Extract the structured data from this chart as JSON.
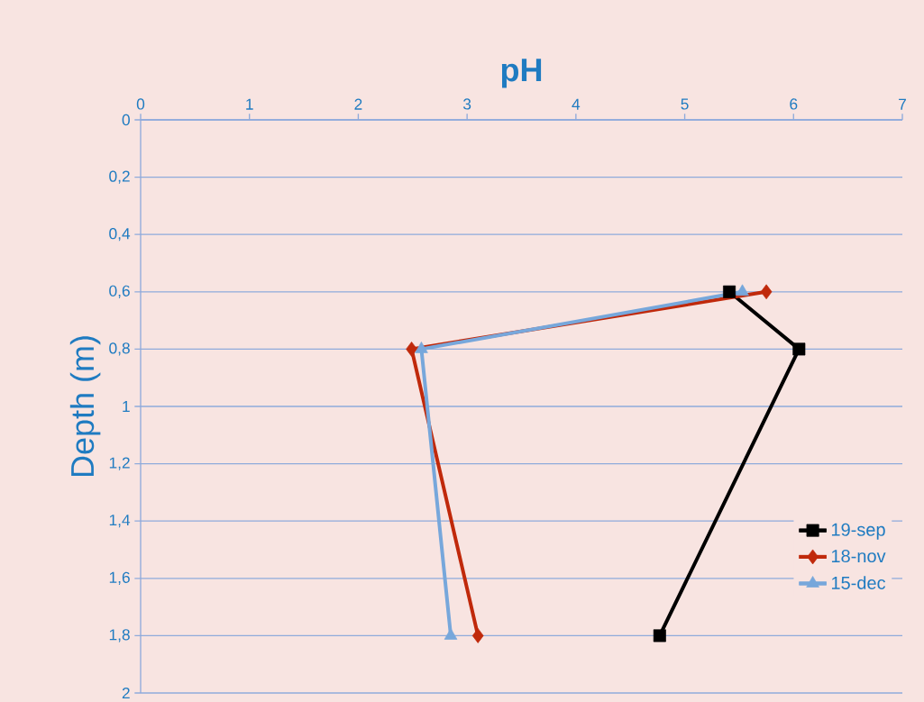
{
  "chart_data": {
    "type": "line",
    "xlabel": "pH",
    "ylabel": "Depth (m)",
    "xlim": [
      0,
      7
    ],
    "xticks": [
      0,
      1,
      2,
      3,
      4,
      5,
      6,
      7
    ],
    "ylim": [
      2,
      0
    ],
    "yticks": [
      0,
      {
        "value": 0.2,
        "label": "0,2"
      },
      {
        "value": 0.4,
        "label": "0,4"
      },
      {
        "value": 0.6,
        "label": "0,6"
      },
      {
        "value": 0.8,
        "label": "0,8"
      },
      1,
      {
        "value": 1.2,
        "label": "1,2"
      },
      {
        "value": 1.4,
        "label": "1,4"
      },
      {
        "value": 1.6,
        "label": "1,6"
      },
      {
        "value": 1.8,
        "label": "1,8"
      },
      2
    ],
    "grid": "y",
    "legend": "right",
    "line_style": "solid",
    "series": [
      {
        "name": "19-sep",
        "color": "#000000",
        "marker": "square",
        "x": [
          5.41,
          6.05,
          4.77
        ],
        "values": [
          0.6,
          0.8,
          1.8
        ]
      },
      {
        "name": "18-nov",
        "color": "#c0290b",
        "marker": "diamond",
        "x": [
          5.75,
          2.49,
          3.1
        ],
        "values": [
          0.6,
          0.8,
          1.8
        ]
      },
      {
        "name": "15-dec",
        "color": "#77a7db",
        "marker": "triangle",
        "x": [
          5.53,
          2.58,
          2.85
        ],
        "values": [
          0.6,
          0.8,
          1.8
        ]
      }
    ]
  }
}
